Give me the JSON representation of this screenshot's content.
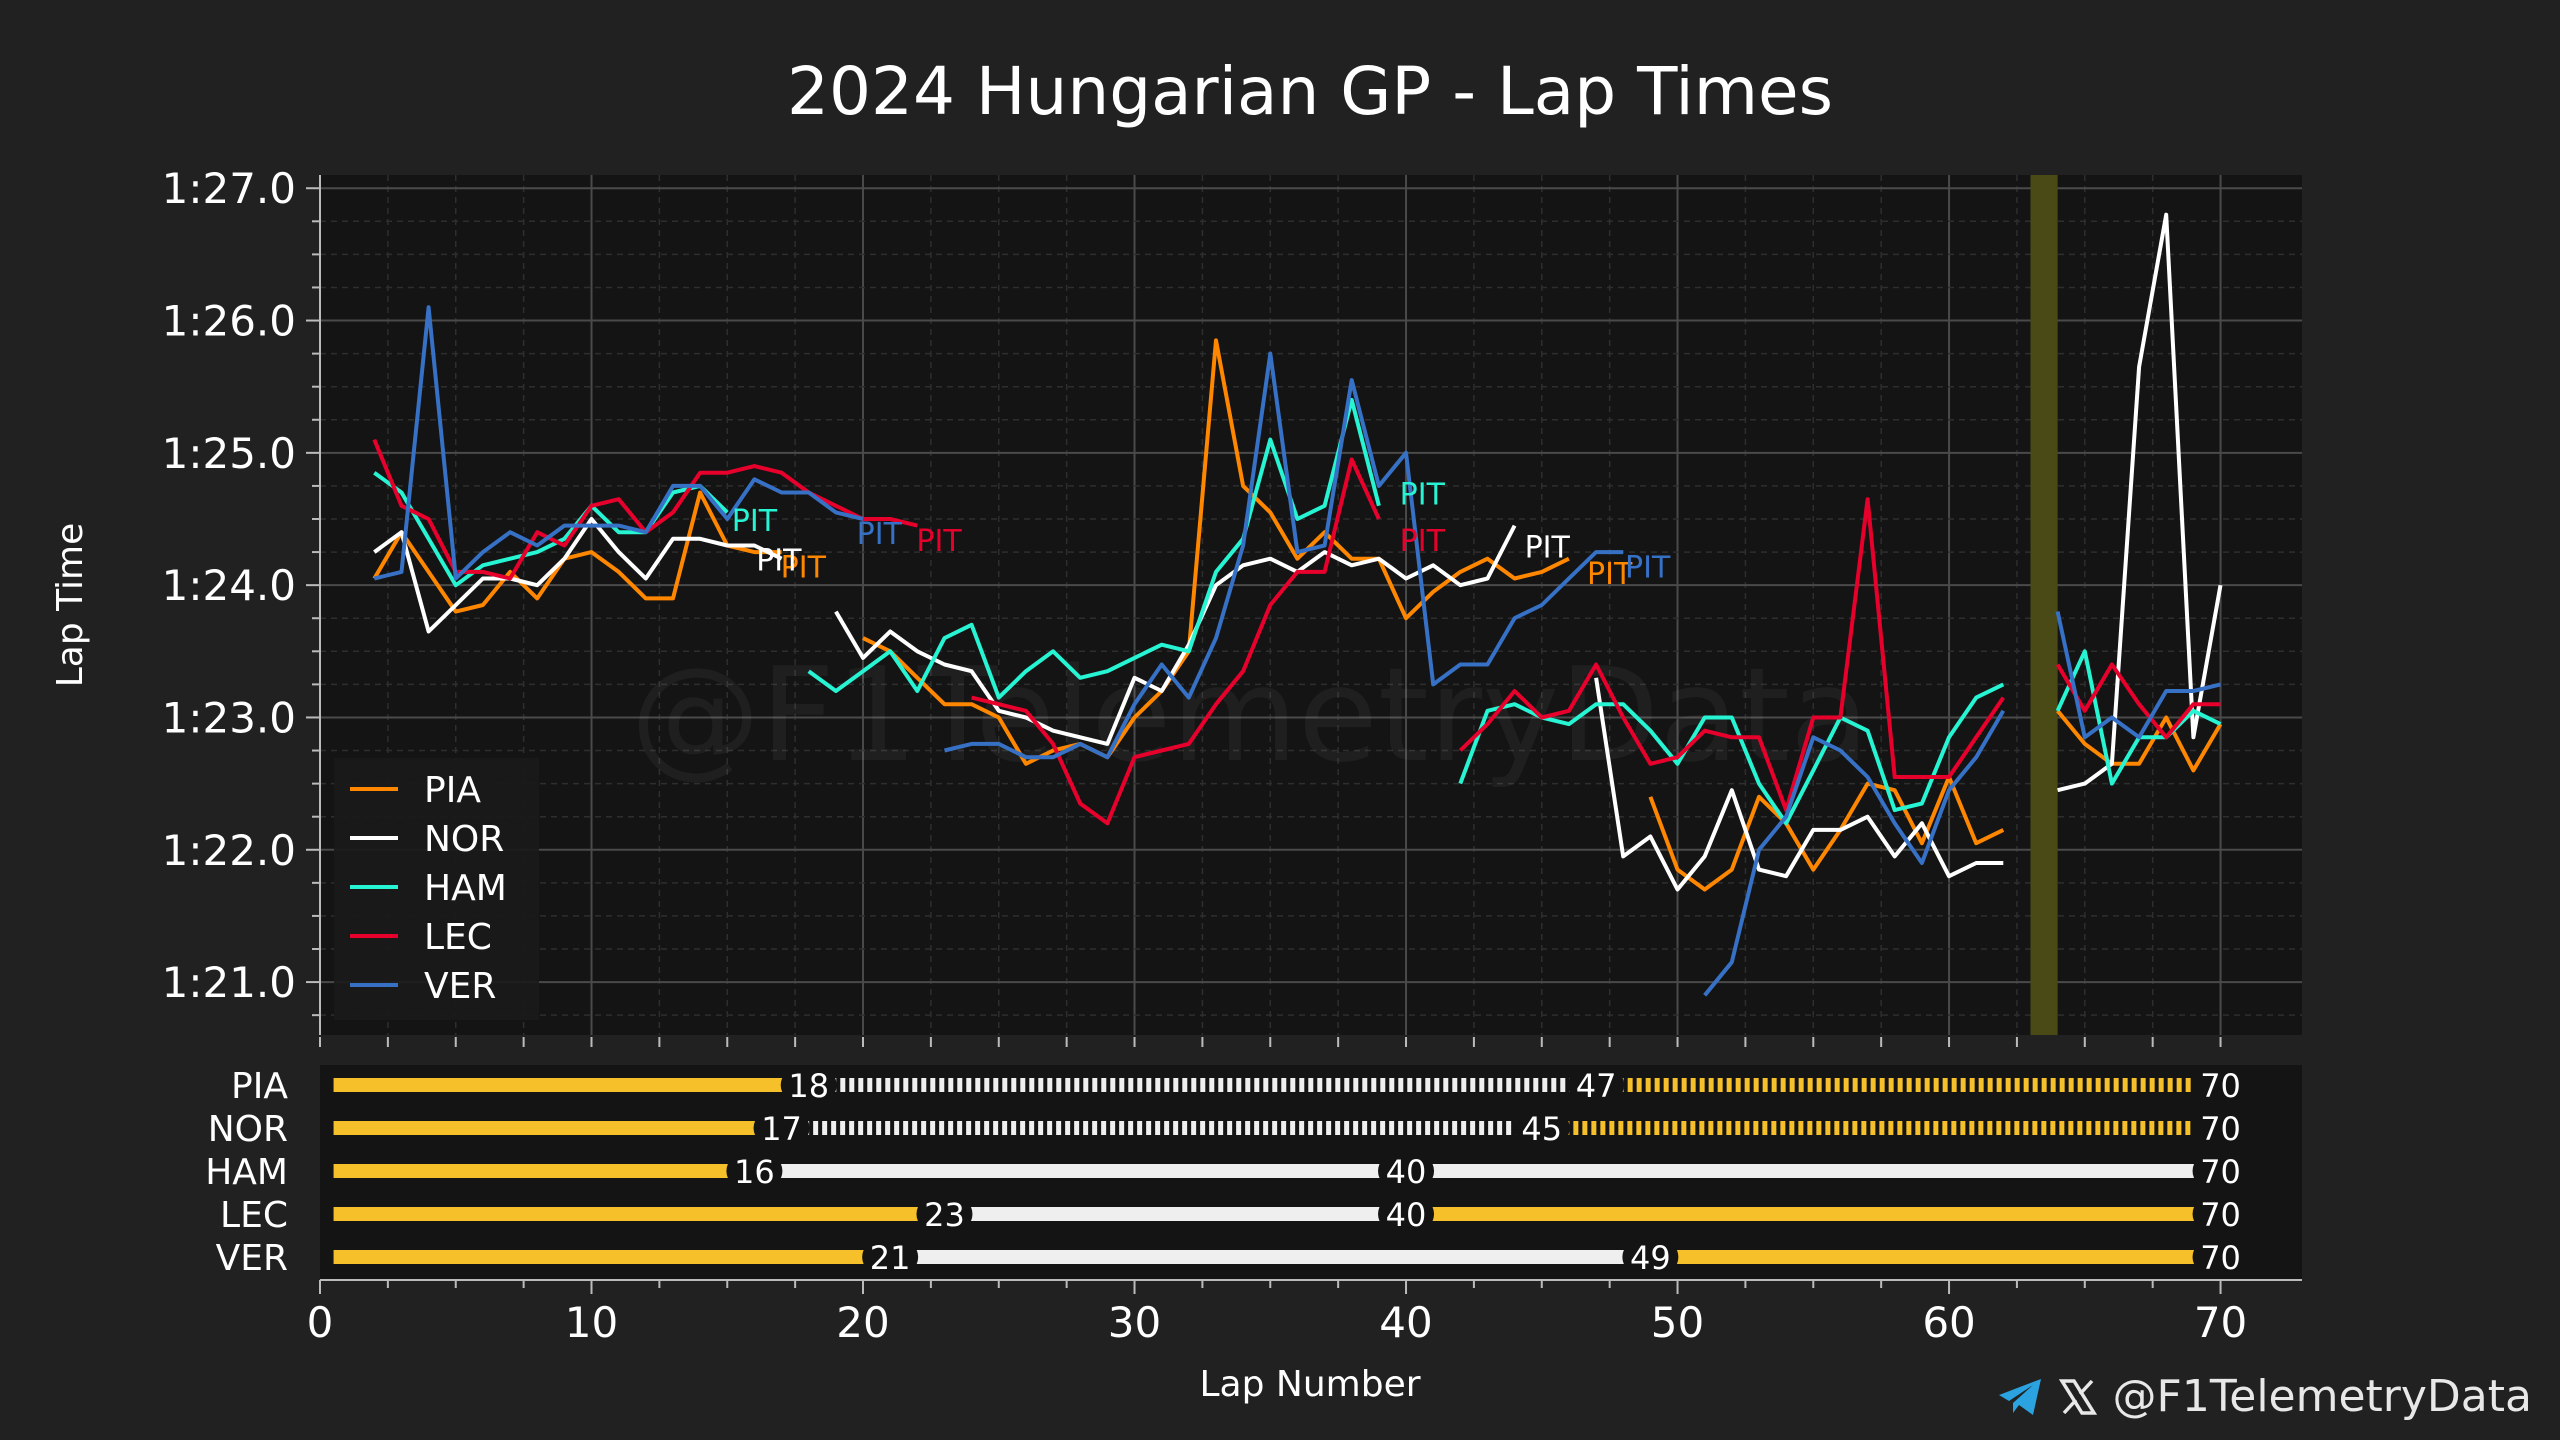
{
  "chart_data": {
    "type": "line",
    "title": "2024 Hungarian GP - Lap Times",
    "xlabel": "Lap Number",
    "ylabel": "Lap Time",
    "xlim": [
      0,
      73
    ],
    "ylim": [
      80.6,
      87.1
    ],
    "x_ticks": [
      0,
      10,
      20,
      30,
      40,
      50,
      60,
      70
    ],
    "x_tick_labels": [
      "0",
      "10",
      "20",
      "30",
      "40",
      "50",
      "60",
      "70"
    ],
    "y_ticks": [
      81,
      82,
      83,
      84,
      85,
      86,
      87
    ],
    "y_tick_labels": [
      "1:21.0",
      "1:22.0",
      "1:23.0",
      "1:24.0",
      "1:25.0",
      "1:26.0",
      "1:27.0"
    ],
    "grid": true,
    "legend_position": "bottom-left",
    "watermark": "@F1TelemetryData",
    "highlight_band": {
      "x": [
        63,
        64
      ],
      "color": "#4a4a17"
    },
    "pit_label": "PIT",
    "series": [
      {
        "name": "PIA",
        "color": "#ff8700",
        "segments": [
          {
            "x": [
              2,
              3,
              4,
              5,
              6,
              7,
              8,
              9,
              10,
              11,
              12,
              13,
              14,
              15,
              16,
              17
            ],
            "y": [
              84.05,
              84.4,
              84.1,
              83.8,
              83.85,
              84.1,
              83.9,
              84.2,
              84.25,
              84.1,
              83.9,
              83.9,
              84.7,
              84.3,
              84.25,
              84.25
            ]
          },
          {
            "x": [
              20,
              21,
              22,
              23,
              24,
              25,
              26,
              27,
              28,
              29,
              30,
              31,
              32,
              33,
              34,
              35,
              36,
              37,
              38,
              39,
              40,
              41,
              42,
              43,
              44,
              45,
              46
            ],
            "y": [
              83.6,
              83.5,
              83.3,
              83.1,
              83.1,
              83.0,
              82.65,
              82.75,
              82.8,
              82.7,
              83.0,
              83.2,
              83.5,
              85.85,
              84.75,
              84.55,
              84.2,
              84.4,
              84.2,
              84.2,
              83.75,
              83.95,
              84.1,
              84.2,
              84.05,
              84.1,
              84.2
            ]
          },
          {
            "x": [
              49,
              50,
              51,
              52,
              53,
              54,
              55,
              56,
              57,
              58,
              59,
              60,
              61,
              62
            ],
            "y": [
              82.4,
              81.85,
              81.7,
              81.85,
              82.4,
              82.2,
              81.85,
              82.15,
              82.5,
              82.45,
              82.05,
              82.55,
              82.05,
              82.15
            ]
          },
          {
            "x": [
              64,
              65,
              66,
              67,
              68,
              69,
              70
            ],
            "y": [
              83.05,
              82.8,
              82.65,
              82.65,
              83.0,
              82.6,
              82.95
            ]
          }
        ],
        "pits": [
          {
            "x": 17.8,
            "y": 84.15
          },
          {
            "x": 47.5,
            "y": 84.1
          }
        ]
      },
      {
        "name": "NOR",
        "color": "#ffffff",
        "segments": [
          {
            "x": [
              2,
              3,
              4,
              5,
              6,
              7,
              8,
              9,
              10,
              11,
              12,
              13,
              14,
              15,
              16,
              17
            ],
            "y": [
              84.25,
              84.4,
              83.65,
              83.85,
              84.05,
              84.05,
              84.0,
              84.2,
              84.5,
              84.25,
              84.05,
              84.35,
              84.35,
              84.3,
              84.3,
              84.2
            ]
          },
          {
            "x": [
              19,
              20,
              21,
              22,
              23,
              24,
              25,
              26,
              27,
              28,
              29,
              30,
              31,
              32,
              33,
              34,
              35,
              36,
              37,
              38,
              39,
              40,
              41,
              42,
              43,
              44
            ],
            "y": [
              83.8,
              83.45,
              83.65,
              83.5,
              83.4,
              83.35,
              83.05,
              83.0,
              82.9,
              82.85,
              82.8,
              83.3,
              83.2,
              83.55,
              84.0,
              84.15,
              84.2,
              84.1,
              84.25,
              84.15,
              84.2,
              84.05,
              84.15,
              84.0,
              84.05,
              84.45
            ]
          },
          {
            "x": [
              47,
              48,
              49,
              50,
              51,
              52,
              53,
              54,
              55,
              56,
              57,
              58,
              59,
              60,
              61,
              62
            ],
            "y": [
              83.3,
              81.95,
              82.1,
              81.7,
              81.95,
              82.45,
              81.85,
              81.8,
              82.15,
              82.15,
              82.25,
              81.95,
              82.2,
              81.8,
              81.9,
              81.9
            ]
          },
          {
            "x": [
              64,
              65,
              66,
              67,
              68,
              69,
              70
            ],
            "y": [
              82.45,
              82.5,
              82.65,
              85.65,
              86.8,
              82.85,
              84.0
            ]
          }
        ],
        "pits": [
          {
            "x": 16.9,
            "y": 84.2
          },
          {
            "x": 45.2,
            "y": 84.3
          }
        ]
      },
      {
        "name": "HAM",
        "color": "#27f4d2",
        "segments": [
          {
            "x": [
              2,
              3,
              4,
              5,
              6,
              7,
              8,
              9,
              10,
              11,
              12,
              13,
              14,
              15
            ],
            "y": [
              84.85,
              84.7,
              84.35,
              84.0,
              84.15,
              84.2,
              84.25,
              84.35,
              84.6,
              84.4,
              84.4,
              84.7,
              84.75,
              84.55
            ]
          },
          {
            "x": [
              18,
              19,
              20,
              21,
              22,
              23,
              24,
              25,
              26,
              27,
              28,
              29,
              30,
              31,
              32,
              33,
              34,
              35,
              36,
              37,
              38,
              39
            ],
            "y": [
              83.35,
              83.2,
              83.35,
              83.5,
              83.2,
              83.6,
              83.7,
              83.15,
              83.35,
              83.5,
              83.3,
              83.35,
              83.45,
              83.55,
              83.5,
              84.1,
              84.35,
              85.1,
              84.5,
              84.6,
              85.4,
              84.6
            ]
          },
          {
            "x": [
              42,
              43,
              44,
              45,
              46,
              47,
              48,
              49,
              50,
              51,
              52,
              53,
              54,
              55,
              56,
              57,
              58,
              59,
              60,
              61,
              62
            ],
            "y": [
              82.5,
              83.05,
              83.1,
              83.0,
              82.95,
              83.1,
              83.1,
              82.9,
              82.65,
              83.0,
              83.0,
              82.5,
              82.2,
              82.6,
              83.0,
              82.9,
              82.3,
              82.35,
              82.85,
              83.15,
              83.25
            ]
          },
          {
            "x": [
              64,
              65,
              66,
              67,
              68,
              69,
              70
            ],
            "y": [
              83.05,
              83.5,
              82.5,
              82.85,
              82.85,
              83.05,
              82.95
            ]
          }
        ],
        "pits": [
          {
            "x": 16.0,
            "y": 84.5
          },
          {
            "x": 40.6,
            "y": 84.7
          }
        ]
      },
      {
        "name": "LEC",
        "color": "#e8002d",
        "segments": [
          {
            "x": [
              2,
              3,
              4,
              5,
              6,
              7,
              8,
              9,
              10,
              11,
              12,
              13,
              14,
              15,
              16,
              17,
              18,
              19,
              20,
              21,
              22
            ],
            "y": [
              85.1,
              84.6,
              84.5,
              84.1,
              84.1,
              84.05,
              84.4,
              84.3,
              84.6,
              84.65,
              84.4,
              84.55,
              84.85,
              84.85,
              84.9,
              84.85,
              84.7,
              84.6,
              84.5,
              84.5,
              84.45
            ]
          },
          {
            "x": [
              24,
              25,
              26,
              27,
              28,
              29,
              30,
              31,
              32,
              33,
              34,
              35,
              36,
              37,
              38,
              39
            ],
            "y": [
              83.15,
              83.1,
              83.05,
              82.8,
              82.35,
              82.2,
              82.7,
              82.75,
              82.8,
              83.1,
              83.35,
              83.85,
              84.1,
              84.1,
              84.95,
              84.5
            ]
          },
          {
            "x": [
              42,
              43,
              44,
              45,
              46,
              47,
              48,
              49,
              50,
              51,
              52,
              53,
              54,
              55,
              56,
              57,
              58,
              59,
              60,
              61,
              62
            ],
            "y": [
              82.75,
              82.95,
              83.2,
              83.0,
              83.05,
              83.4,
              83.0,
              82.65,
              82.7,
              82.9,
              82.85,
              82.85,
              82.3,
              83.0,
              83.0,
              84.65,
              82.55,
              82.55,
              82.55,
              82.85,
              83.15
            ]
          },
          {
            "x": [
              64,
              65,
              66,
              67,
              68,
              69,
              70
            ],
            "y": [
              83.4,
              83.05,
              83.4,
              83.1,
              82.85,
              83.1,
              83.1
            ]
          }
        ],
        "pits": [
          {
            "x": 22.8,
            "y": 84.35
          },
          {
            "x": 40.6,
            "y": 84.35
          }
        ]
      },
      {
        "name": "VER",
        "color": "#3671c6",
        "segments": [
          {
            "x": [
              2,
              3,
              4,
              5,
              6,
              7,
              8,
              9,
              10,
              11,
              12,
              13,
              14,
              15,
              16,
              17,
              18,
              19,
              20
            ],
            "y": [
              84.05,
              84.1,
              86.1,
              84.05,
              84.25,
              84.4,
              84.3,
              84.45,
              84.45,
              84.45,
              84.4,
              84.75,
              84.75,
              84.5,
              84.8,
              84.7,
              84.7,
              84.55,
              84.5
            ]
          },
          {
            "x": [
              23,
              24,
              25,
              26,
              27,
              28,
              29,
              30,
              31,
              32,
              33,
              34,
              35,
              36,
              37,
              38,
              39,
              40,
              41,
              42,
              43,
              44,
              45,
              46,
              47,
              48
            ],
            "y": [
              82.75,
              82.8,
              82.8,
              82.7,
              82.7,
              82.8,
              82.7,
              83.1,
              83.4,
              83.15,
              83.6,
              84.3,
              85.75,
              84.25,
              84.3,
              85.55,
              84.75,
              85.0,
              83.25,
              83.4,
              83.4,
              83.75,
              83.85,
              84.05,
              84.25,
              84.25
            ]
          },
          {
            "x": [
              51,
              52,
              53,
              54,
              55,
              56,
              57,
              58,
              59,
              60,
              61,
              62
            ],
            "y": [
              80.9,
              81.15,
              82.0,
              82.25,
              82.85,
              82.75,
              82.55,
              82.2,
              81.9,
              82.45,
              82.7,
              83.05
            ]
          },
          {
            "x": [
              64,
              65,
              66,
              67,
              68,
              69,
              70
            ],
            "y": [
              83.8,
              82.85,
              83.0,
              82.85,
              83.2,
              83.2,
              83.25
            ]
          }
        ],
        "pits": [
          {
            "x": 20.6,
            "y": 84.4
          },
          {
            "x": 48.9,
            "y": 84.15
          }
        ]
      }
    ],
    "stints": [
      {
        "driver": "PIA",
        "stints": [
          {
            "start": 1,
            "end": 18,
            "compound": "medium"
          },
          {
            "start": 19,
            "end": 47,
            "compound": "hard-used"
          },
          {
            "start": 48,
            "end": 70,
            "compound": "medium-used"
          }
        ],
        "labels": [
          "18",
          "47",
          "70"
        ]
      },
      {
        "driver": "NOR",
        "stints": [
          {
            "start": 1,
            "end": 17,
            "compound": "medium"
          },
          {
            "start": 18,
            "end": 45,
            "compound": "hard-used"
          },
          {
            "start": 46,
            "end": 70,
            "compound": "medium-used"
          }
        ],
        "labels": [
          "17",
          "45",
          "70"
        ]
      },
      {
        "driver": "HAM",
        "stints": [
          {
            "start": 1,
            "end": 16,
            "compound": "medium"
          },
          {
            "start": 17,
            "end": 40,
            "compound": "hard"
          },
          {
            "start": 41,
            "end": 70,
            "compound": "hard"
          }
        ],
        "labels": [
          "16",
          "40",
          "70"
        ]
      },
      {
        "driver": "LEC",
        "stints": [
          {
            "start": 1,
            "end": 23,
            "compound": "medium"
          },
          {
            "start": 24,
            "end": 40,
            "compound": "hard"
          },
          {
            "start": 41,
            "end": 70,
            "compound": "medium"
          }
        ],
        "labels": [
          "23",
          "40",
          "70"
        ]
      },
      {
        "driver": "VER",
        "stints": [
          {
            "start": 1,
            "end": 21,
            "compound": "medium"
          },
          {
            "start": 22,
            "end": 49,
            "compound": "hard"
          },
          {
            "start": 50,
            "end": 70,
            "compound": "medium"
          }
        ],
        "labels": [
          "21",
          "49",
          "70"
        ]
      }
    ],
    "compound_colors": {
      "medium": "#f5c02a",
      "hard": "#efefef"
    }
  },
  "footer": {
    "handle": "@F1TelemetryData",
    "icons": [
      "telegram-icon",
      "x-icon"
    ]
  }
}
